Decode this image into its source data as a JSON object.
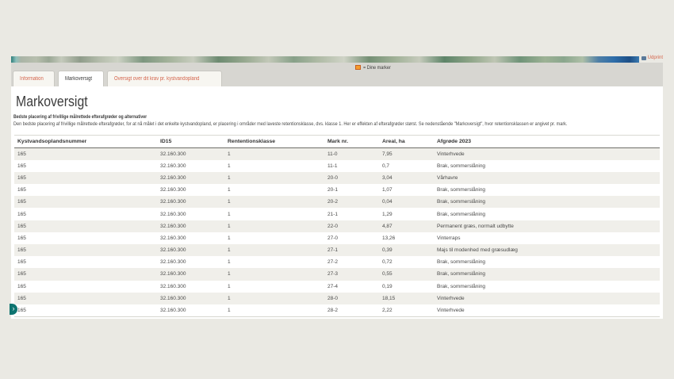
{
  "banner": {
    "print_label": "Udprint",
    "legend_label": "= Dine marker"
  },
  "tabs": [
    {
      "label": "Information",
      "active": false
    },
    {
      "label": "Markoversigt",
      "active": true
    },
    {
      "label": "Oversigt over dit krav pr. kystvandopland",
      "active": false
    }
  ],
  "page": {
    "title": "Markoversigt",
    "subtitle_bold": "Bedste placering af frivillige målrettede efterafgrøder og alternativer",
    "description": "Den bedste placering af frivillige målrettede efterafgrøder, for at nå målet i det enkelte kystvandopland, er placering i områder med laveste retentionsklasse, dvs. klasse 1. Her er effekten af efterafgrøder størst. Se nedenstående \"Markoversigt\", hvor retentionsklassen er angivet pr. mark."
  },
  "table": {
    "columns": [
      "Kystvandsoplandsnummer",
      "ID15",
      "Rententionsklasse",
      "Mark nr.",
      "Areal, ha",
      "Afgrøde 2023"
    ],
    "rows": [
      [
        "165",
        "32.160.300",
        "1",
        "11-0",
        "7,95",
        "Vinterhvede"
      ],
      [
        "165",
        "32.160.300",
        "1",
        "11-1",
        "0,7",
        "Brak, sommerslåning"
      ],
      [
        "165",
        "32.160.300",
        "1",
        "20-0",
        "3,04",
        "Vårhavre"
      ],
      [
        "165",
        "32.160.300",
        "1",
        "20-1",
        "1,07",
        "Brak, sommerslåning"
      ],
      [
        "165",
        "32.160.300",
        "1",
        "20-2",
        "0,04",
        "Brak, sommerslåning"
      ],
      [
        "165",
        "32.160.300",
        "1",
        "21-1",
        "1,29",
        "Brak, sommerslåning"
      ],
      [
        "165",
        "32.160.300",
        "1",
        "22-0",
        "4,87",
        "Permanent græs, normalt udbytte"
      ],
      [
        "165",
        "32.160.300",
        "1",
        "27-0",
        "13,26",
        "Vinterraps"
      ],
      [
        "165",
        "32.160.300",
        "1",
        "27-1",
        "0,39",
        "Majs til modenhed med græsudlæg"
      ],
      [
        "165",
        "32.160.300",
        "1",
        "27-2",
        "0,72",
        "Brak, sommerslåning"
      ],
      [
        "165",
        "32.160.300",
        "1",
        "27-3",
        "0,55",
        "Brak, sommerslåning"
      ],
      [
        "165",
        "32.160.300",
        "1",
        "27-4",
        "0,19",
        "Brak, sommerslåning"
      ],
      [
        "165",
        "32.160.300",
        "1",
        "28-0",
        "18,15",
        "Vinterhvede"
      ],
      [
        "165",
        "32.160.300",
        "1",
        "28-2",
        "2,22",
        "Vinterhvede"
      ]
    ]
  }
}
